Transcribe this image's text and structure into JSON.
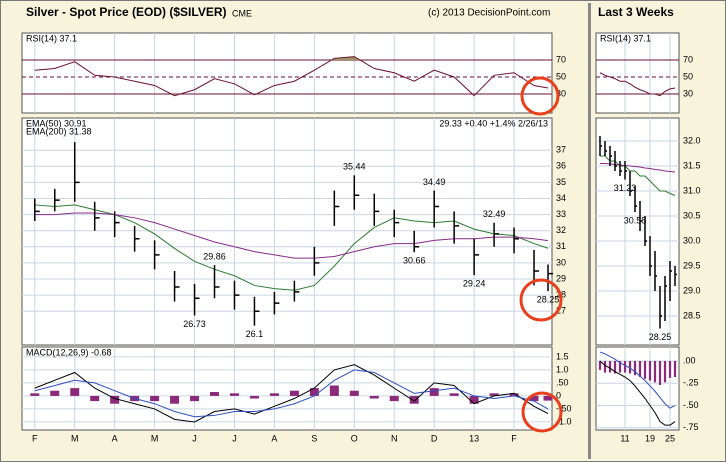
{
  "chart_data": [
    {
      "type": "ohlc",
      "title": "Silver - Spot Price (EOD) ($SILVER)",
      "subtitle": "CME",
      "source": "(c) 2013 DecisionPoint.com",
      "x": [
        0,
        0.5,
        1,
        1.5,
        2,
        2.5,
        3,
        3.5,
        4,
        4.5,
        5,
        5.5,
        6,
        6.5,
        7,
        7.5,
        8,
        8.5,
        9,
        9.5,
        10,
        10.5,
        11,
        11.5,
        12,
        12.5,
        12.85
      ],
      "xlim": [
        -0.32,
        12.95
      ],
      "xticks": [
        {
          "value": 0,
          "label": "F"
        },
        {
          "value": 1,
          "label": "M"
        },
        {
          "value": 2,
          "label": "A"
        },
        {
          "value": 3,
          "label": "M"
        },
        {
          "value": 4,
          "label": "J"
        },
        {
          "value": 5,
          "label": "J"
        },
        {
          "value": 6,
          "label": "A"
        },
        {
          "value": 7,
          "label": "S"
        },
        {
          "value": 8,
          "label": "O"
        },
        {
          "value": 9,
          "label": "N"
        },
        {
          "value": 10,
          "label": "D"
        },
        {
          "value": 11,
          "label": "13"
        },
        {
          "value": 12,
          "label": "F"
        }
      ],
      "panels": [
        {
          "type": "rsi",
          "label": "RSI(14) 37.1",
          "ylim": [
            7.6,
            101.8
          ],
          "yticks": [
            30,
            50,
            70
          ],
          "color": "#6a1030",
          "shade_color": "#9c9460",
          "values": [
            58,
            60,
            68,
            52,
            50,
            45,
            40,
            28,
            35,
            48,
            42,
            29,
            40,
            45,
            58,
            72,
            74,
            60,
            55,
            45,
            58,
            50,
            28,
            52,
            55,
            40,
            37.1
          ]
        },
        {
          "type": "ohlc",
          "quote": "29.33 +0.40 +1.4% 2/26/13",
          "ylim": [
            24.9,
            39.0
          ],
          "yticks": [
            27,
            28,
            29,
            30,
            31,
            32,
            33,
            34,
            35,
            36,
            37
          ],
          "grid": true,
          "color": "#000000",
          "high": [
            34.0,
            34.6,
            37.5,
            33.8,
            33.2,
            32.3,
            31.4,
            29.5,
            28.7,
            29.86,
            28.9,
            27.9,
            28.2,
            28.9,
            31.0,
            34.5,
            35.44,
            34.3,
            33.3,
            32.0,
            34.49,
            33.2,
            31.5,
            32.49,
            32.2,
            30.8,
            29.9
          ],
          "low": [
            32.6,
            33.2,
            33.8,
            32.0,
            31.6,
            30.7,
            29.6,
            27.6,
            26.73,
            27.8,
            27.1,
            26.1,
            26.8,
            27.6,
            29.2,
            32.3,
            33.3,
            32.3,
            31.6,
            30.66,
            32.2,
            31.2,
            29.24,
            31.0,
            30.6,
            28.6,
            28.25
          ],
          "close": [
            33.2,
            33.9,
            35.0,
            32.8,
            32.5,
            31.5,
            30.5,
            28.5,
            27.8,
            28.5,
            28.0,
            27.0,
            27.5,
            28.2,
            30.0,
            33.5,
            34.2,
            33.2,
            32.5,
            31.0,
            33.5,
            32.3,
            30.5,
            31.8,
            31.5,
            29.5,
            29.33
          ],
          "series": [
            {
              "name": "EMA(50) 30.91",
              "color": "#2e7d32",
              "values": [
                33.6,
                33.5,
                33.6,
                33.3,
                33.0,
                32.5,
                31.8,
                30.9,
                30.1,
                29.6,
                29.2,
                28.6,
                28.4,
                28.3,
                28.6,
                29.8,
                31.2,
                32.2,
                32.8,
                32.6,
                32.5,
                32.6,
                32.1,
                31.8,
                31.7,
                31.2,
                30.91
              ]
            },
            {
              "name": "EMA(200) 31.38",
              "color": "#8a2a8a",
              "values": [
                33.0,
                33.0,
                33.1,
                33.1,
                33.0,
                32.8,
                32.5,
                32.1,
                31.7,
                31.3,
                31.0,
                30.7,
                30.5,
                30.3,
                30.3,
                30.4,
                30.7,
                31.0,
                31.2,
                31.2,
                31.4,
                31.5,
                31.5,
                31.6,
                31.6,
                31.5,
                31.38
              ]
            }
          ],
          "annotations": [
            {
              "x": 4,
              "value": 26.73
            },
            {
              "x": 4.5,
              "value": 29.86
            },
            {
              "x": 5.5,
              "value": 26.1
            },
            {
              "x": 8,
              "value": 35.44
            },
            {
              "x": 9.5,
              "value": 30.66
            },
            {
              "x": 10,
              "value": 34.49
            },
            {
              "x": 11,
              "value": 29.24
            },
            {
              "x": 11.5,
              "value": 32.49
            },
            {
              "x": 12.85,
              "value": 28.25
            }
          ]
        },
        {
          "type": "macd",
          "label": "MACD(12,26,9) -0.68",
          "ylim": [
            -1.31,
            1.88
          ],
          "grid": true,
          "yticks": [
            1.5,
            {
              "value": 1,
              "label": "1.0"
            },
            {
              "value": 0.5,
              "label": ".50"
            },
            0,
            {
              "value": -0.5,
              "label": "-.50"
            },
            {
              "value": -1,
              "label": "-1.0"
            }
          ],
          "series": [
            {
              "color": "#000000",
              "values": [
                0.3,
                0.6,
                0.9,
                0.3,
                -0.1,
                -0.3,
                -0.5,
                -0.9,
                -1.0,
                -0.6,
                -0.5,
                -0.7,
                -0.4,
                -0.1,
                0.3,
                1.0,
                1.2,
                0.8,
                0.3,
                -0.2,
                0.5,
                0.4,
                -0.3,
                0.0,
                0.1,
                -0.4,
                -0.68
              ]
            },
            {
              "color": "#3050c0",
              "values": [
                0.2,
                0.4,
                0.6,
                0.5,
                0.2,
                -0.1,
                -0.3,
                -0.6,
                -0.8,
                -0.75,
                -0.6,
                -0.6,
                -0.5,
                -0.3,
                0.0,
                0.6,
                1.0,
                0.9,
                0.5,
                0.1,
                0.2,
                0.3,
                0.0,
                -0.1,
                0.0,
                -0.2,
                -0.5
              ]
            }
          ],
          "histogram": {
            "color": "#8b2a7a",
            "values": [
              0.1,
              0.2,
              0.3,
              -0.2,
              -0.3,
              -0.2,
              -0.2,
              -0.3,
              -0.2,
              0.15,
              0.1,
              -0.1,
              0.1,
              0.2,
              0.3,
              0.4,
              0.2,
              -0.1,
              -0.2,
              -0.3,
              0.3,
              0.1,
              -0.3,
              0.1,
              0.1,
              -0.2,
              -0.18
            ]
          }
        }
      ]
    },
    {
      "type": "ohlc",
      "title": "Last 3 Weeks",
      "x": [
        0,
        1,
        2,
        3,
        4,
        5,
        6,
        7,
        8,
        9,
        10,
        11,
        12,
        13,
        14,
        15
      ],
      "xlim": [
        -0.8,
        15.8
      ],
      "xticks": [
        {
          "value": 5,
          "label": "11"
        },
        {
          "value": 10,
          "label": "19"
        },
        {
          "value": 14,
          "label": "25"
        }
      ],
      "panels": [
        {
          "type": "rsi",
          "label": "RSI(14) 37.1",
          "ylim": [
            7.6,
            101.8
          ],
          "yticks": [
            30,
            50,
            70
          ],
          "color": "#6a1030",
          "shade_color": "#9c9460",
          "values": [
            55,
            52,
            50,
            48,
            45,
            45,
            42,
            38,
            35,
            33,
            30,
            30,
            28,
            33,
            36,
            37.1
          ]
        },
        {
          "type": "ohlc",
          "ylim": [
            27.92,
            32.46
          ],
          "grid": true,
          "color": "#000000",
          "yticks": [
            28.5,
            {
              "value": 29,
              "label": "29.0"
            },
            29.5,
            {
              "value": 30,
              "label": "30.0"
            },
            30.5,
            {
              "value": 31,
              "label": "31.0"
            },
            31.5,
            {
              "value": 32,
              "label": "32.0"
            }
          ],
          "high": [
            32.1,
            32.0,
            31.9,
            31.8,
            31.6,
            31.6,
            31.4,
            31.1,
            30.8,
            30.5,
            30.1,
            29.8,
            29.1,
            29.3,
            29.6,
            29.5
          ],
          "low": [
            31.7,
            31.7,
            31.5,
            31.4,
            31.3,
            31.23,
            30.9,
            30.58,
            30.2,
            29.9,
            29.3,
            29.0,
            28.25,
            28.4,
            28.8,
            29.1
          ],
          "close": [
            31.9,
            31.8,
            31.7,
            31.5,
            31.4,
            31.4,
            31.0,
            30.7,
            30.4,
            30.0,
            29.5,
            29.3,
            28.5,
            29.1,
            29.4,
            29.33
          ],
          "series": [
            {
              "color": "#2e7d32",
              "values": [
                31.7,
                31.7,
                31.6,
                31.6,
                31.5,
                31.5,
                31.4,
                31.4,
                31.3,
                31.3,
                31.2,
                31.1,
                31.0,
                31.0,
                30.95,
                30.91
              ]
            },
            {
              "color": "#8a2a8a",
              "values": [
                31.55,
                31.55,
                31.54,
                31.53,
                31.52,
                31.51,
                31.5,
                31.49,
                31.48,
                31.46,
                31.45,
                31.43,
                31.42,
                31.4,
                31.39,
                31.38
              ]
            }
          ],
          "annotations": [
            {
              "x": 5,
              "value": 31.23
            },
            {
              "x": 7,
              "value": 30.58
            },
            {
              "x": 12,
              "value": 28.25
            }
          ]
        },
        {
          "type": "macd",
          "ylim": [
            -0.775,
            0.157
          ],
          "grid": true,
          "yticks": [
            {
              "value": 0,
              "label": ".00"
            },
            {
              "value": -0.25,
              "label": "-.25"
            },
            {
              "value": -0.5,
              "label": "-.50"
            },
            {
              "value": -0.75,
              "label": "-.75"
            }
          ],
          "series": [
            {
              "color": "#000000",
              "values": [
                0.0,
                -0.05,
                -0.08,
                -0.12,
                -0.15,
                -0.18,
                -0.22,
                -0.28,
                -0.35,
                -0.42,
                -0.5,
                -0.58,
                -0.68,
                -0.72,
                -0.72,
                -0.68
              ]
            },
            {
              "color": "#3050c0",
              "values": [
                0.1,
                0.08,
                0.05,
                0.02,
                -0.02,
                -0.05,
                -0.08,
                -0.12,
                -0.17,
                -0.22,
                -0.28,
                -0.34,
                -0.41,
                -0.48,
                -0.53,
                -0.5
              ]
            }
          ],
          "histogram": {
            "color": "#8b2a7a",
            "values": [
              -0.1,
              -0.13,
              -0.13,
              -0.14,
              -0.13,
              -0.13,
              -0.14,
              -0.16,
              -0.18,
              -0.2,
              -0.22,
              -0.24,
              -0.27,
              -0.24,
              -0.19,
              -0.18
            ]
          }
        }
      ]
    }
  ]
}
